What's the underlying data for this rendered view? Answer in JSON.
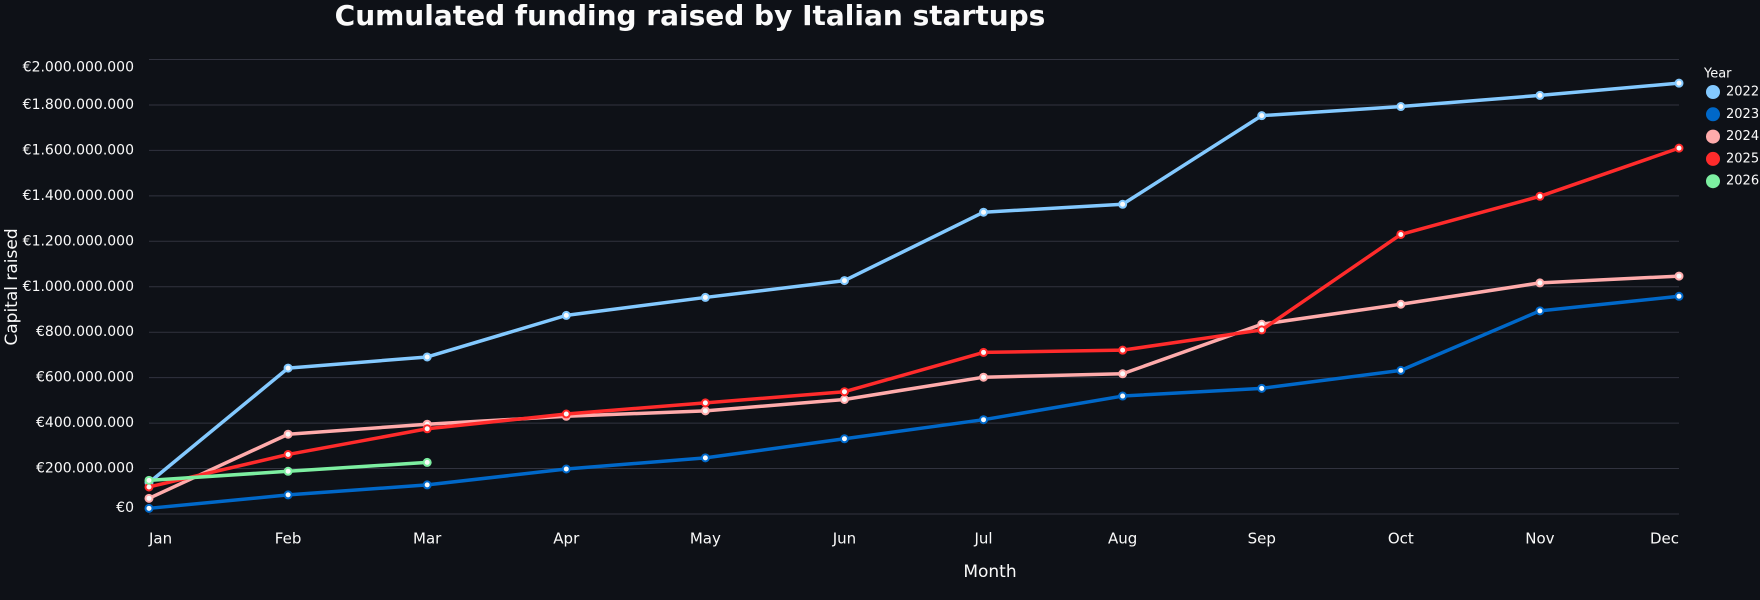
{
  "chart_data": {
    "type": "line",
    "title": "Cumulated funding raised by Italian startups",
    "x_label": "Month",
    "y_label": "Capital raised",
    "legend_title": "Year",
    "legend": "right",
    "grid": true,
    "categories": [
      "Jan",
      "Feb",
      "Mar",
      "Apr",
      "May",
      "Jun",
      "Jul",
      "Aug",
      "Sep",
      "Oct",
      "Nov",
      "Dec"
    ],
    "ylim": [
      0,
      2000000000
    ],
    "yticks": [
      {
        "value": 0,
        "label": "€0"
      },
      {
        "value": 200000000,
        "label": "€200.000.000"
      },
      {
        "value": 400000000,
        "label": "€400.000.000"
      },
      {
        "value": 600000000,
        "label": "€600.000.000"
      },
      {
        "value": 800000000,
        "label": "€800.000.000"
      },
      {
        "value": 1000000000,
        "label": "€1.000.000.000"
      },
      {
        "value": 1200000000,
        "label": "€1.200.000.000"
      },
      {
        "value": 1400000000,
        "label": "€1.400.000.000"
      },
      {
        "value": 1600000000,
        "label": "€1.600.000.000"
      },
      {
        "value": 1800000000,
        "label": "€1.800.000.000"
      },
      {
        "value": 2000000000,
        "label": "€2.000.000.000"
      }
    ],
    "series": [
      {
        "name": "2022",
        "color": "#83c9ff",
        "values": [
          138000000,
          642000000,
          691000000,
          874000000,
          953000000,
          1027000000,
          1328000000,
          1363000000,
          1753000000,
          1793000000,
          1842000000,
          1896000000
        ]
      },
      {
        "name": "2023",
        "color": "#0068c9",
        "values": [
          25000000,
          84000000,
          128000000,
          198000000,
          247000000,
          331000000,
          415000000,
          519000000,
          553000000,
          632000000,
          894000000,
          958000000
        ]
      },
      {
        "name": "2024",
        "color": "#ffabab",
        "values": [
          69000000,
          351000000,
          395000000,
          430000000,
          454000000,
          504000000,
          602000000,
          617000000,
          835000000,
          923000000,
          1017000000,
          1047000000
        ]
      },
      {
        "name": "2025",
        "color": "#ff2b2b",
        "values": [
          119000000,
          262000000,
          375000000,
          440000000,
          489000000,
          538000000,
          711000000,
          721000000,
          810000000,
          1230000000,
          1398000000,
          1610000000
        ]
      },
      {
        "name": "2026",
        "color": "#7defa1",
        "values": [
          148000000,
          188000000,
          227000000,
          null,
          null,
          null,
          null,
          null,
          null,
          null,
          null,
          null
        ]
      }
    ]
  }
}
